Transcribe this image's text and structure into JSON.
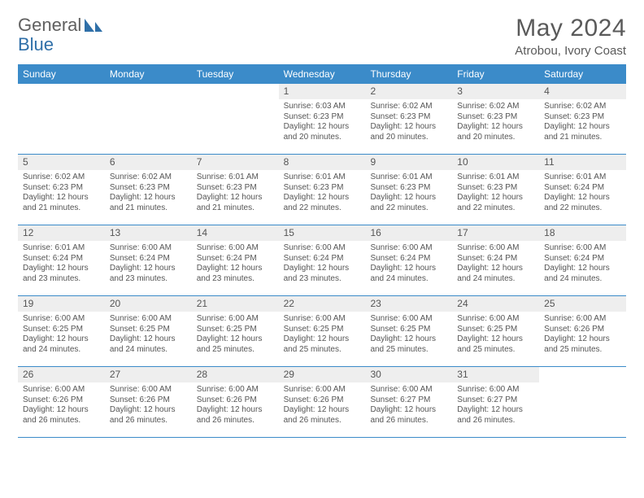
{
  "brand": {
    "part1": "General",
    "part2": "Blue"
  },
  "title": "May 2024",
  "location": "Atrobou, Ivory Coast",
  "colors": {
    "accent": "#3b8bc9",
    "text": "#555555",
    "date_bg": "#eeeeee",
    "background": "#ffffff"
  },
  "day_headers": [
    "Sunday",
    "Monday",
    "Tuesday",
    "Wednesday",
    "Thursday",
    "Friday",
    "Saturday"
  ],
  "weeks": [
    [
      {
        "date": "",
        "sunrise": "",
        "sunset": "",
        "daylight": ""
      },
      {
        "date": "",
        "sunrise": "",
        "sunset": "",
        "daylight": ""
      },
      {
        "date": "",
        "sunrise": "",
        "sunset": "",
        "daylight": ""
      },
      {
        "date": "1",
        "sunrise": "6:03 AM",
        "sunset": "6:23 PM",
        "daylight": "12 hours and 20 minutes."
      },
      {
        "date": "2",
        "sunrise": "6:02 AM",
        "sunset": "6:23 PM",
        "daylight": "12 hours and 20 minutes."
      },
      {
        "date": "3",
        "sunrise": "6:02 AM",
        "sunset": "6:23 PM",
        "daylight": "12 hours and 20 minutes."
      },
      {
        "date": "4",
        "sunrise": "6:02 AM",
        "sunset": "6:23 PM",
        "daylight": "12 hours and 21 minutes."
      }
    ],
    [
      {
        "date": "5",
        "sunrise": "6:02 AM",
        "sunset": "6:23 PM",
        "daylight": "12 hours and 21 minutes."
      },
      {
        "date": "6",
        "sunrise": "6:02 AM",
        "sunset": "6:23 PM",
        "daylight": "12 hours and 21 minutes."
      },
      {
        "date": "7",
        "sunrise": "6:01 AM",
        "sunset": "6:23 PM",
        "daylight": "12 hours and 21 minutes."
      },
      {
        "date": "8",
        "sunrise": "6:01 AM",
        "sunset": "6:23 PM",
        "daylight": "12 hours and 22 minutes."
      },
      {
        "date": "9",
        "sunrise": "6:01 AM",
        "sunset": "6:23 PM",
        "daylight": "12 hours and 22 minutes."
      },
      {
        "date": "10",
        "sunrise": "6:01 AM",
        "sunset": "6:23 PM",
        "daylight": "12 hours and 22 minutes."
      },
      {
        "date": "11",
        "sunrise": "6:01 AM",
        "sunset": "6:24 PM",
        "daylight": "12 hours and 22 minutes."
      }
    ],
    [
      {
        "date": "12",
        "sunrise": "6:01 AM",
        "sunset": "6:24 PM",
        "daylight": "12 hours and 23 minutes."
      },
      {
        "date": "13",
        "sunrise": "6:00 AM",
        "sunset": "6:24 PM",
        "daylight": "12 hours and 23 minutes."
      },
      {
        "date": "14",
        "sunrise": "6:00 AM",
        "sunset": "6:24 PM",
        "daylight": "12 hours and 23 minutes."
      },
      {
        "date": "15",
        "sunrise": "6:00 AM",
        "sunset": "6:24 PM",
        "daylight": "12 hours and 23 minutes."
      },
      {
        "date": "16",
        "sunrise": "6:00 AM",
        "sunset": "6:24 PM",
        "daylight": "12 hours and 24 minutes."
      },
      {
        "date": "17",
        "sunrise": "6:00 AM",
        "sunset": "6:24 PM",
        "daylight": "12 hours and 24 minutes."
      },
      {
        "date": "18",
        "sunrise": "6:00 AM",
        "sunset": "6:24 PM",
        "daylight": "12 hours and 24 minutes."
      }
    ],
    [
      {
        "date": "19",
        "sunrise": "6:00 AM",
        "sunset": "6:25 PM",
        "daylight": "12 hours and 24 minutes."
      },
      {
        "date": "20",
        "sunrise": "6:00 AM",
        "sunset": "6:25 PM",
        "daylight": "12 hours and 24 minutes."
      },
      {
        "date": "21",
        "sunrise": "6:00 AM",
        "sunset": "6:25 PM",
        "daylight": "12 hours and 25 minutes."
      },
      {
        "date": "22",
        "sunrise": "6:00 AM",
        "sunset": "6:25 PM",
        "daylight": "12 hours and 25 minutes."
      },
      {
        "date": "23",
        "sunrise": "6:00 AM",
        "sunset": "6:25 PM",
        "daylight": "12 hours and 25 minutes."
      },
      {
        "date": "24",
        "sunrise": "6:00 AM",
        "sunset": "6:25 PM",
        "daylight": "12 hours and 25 minutes."
      },
      {
        "date": "25",
        "sunrise": "6:00 AM",
        "sunset": "6:26 PM",
        "daylight": "12 hours and 25 minutes."
      }
    ],
    [
      {
        "date": "26",
        "sunrise": "6:00 AM",
        "sunset": "6:26 PM",
        "daylight": "12 hours and 26 minutes."
      },
      {
        "date": "27",
        "sunrise": "6:00 AM",
        "sunset": "6:26 PM",
        "daylight": "12 hours and 26 minutes."
      },
      {
        "date": "28",
        "sunrise": "6:00 AM",
        "sunset": "6:26 PM",
        "daylight": "12 hours and 26 minutes."
      },
      {
        "date": "29",
        "sunrise": "6:00 AM",
        "sunset": "6:26 PM",
        "daylight": "12 hours and 26 minutes."
      },
      {
        "date": "30",
        "sunrise": "6:00 AM",
        "sunset": "6:27 PM",
        "daylight": "12 hours and 26 minutes."
      },
      {
        "date": "31",
        "sunrise": "6:00 AM",
        "sunset": "6:27 PM",
        "daylight": "12 hours and 26 minutes."
      },
      {
        "date": "",
        "sunrise": "",
        "sunset": "",
        "daylight": ""
      }
    ]
  ],
  "labels": {
    "sunrise": "Sunrise:",
    "sunset": "Sunset:",
    "daylight": "Daylight:"
  }
}
